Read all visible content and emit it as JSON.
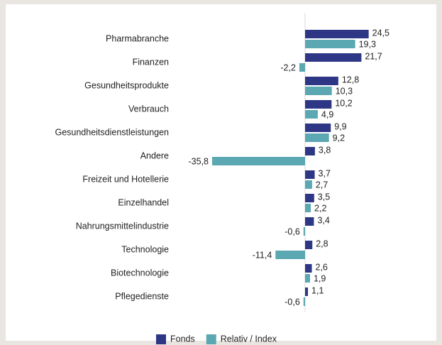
{
  "chart_data": {
    "type": "bar",
    "orientation": "horizontal",
    "categories": [
      "Pharmabranche",
      "Finanzen",
      "Gesundheitsprodukte",
      "Verbrauch",
      "Gesundheitsdienstleistungen",
      "Andere",
      "Freizeit und Hotellerie",
      "Einzelhandel",
      "Nahrungsmittelindustrie",
      "Technologie",
      "Biotechnologie",
      "Pflegedienste"
    ],
    "series": [
      {
        "name": "Fonds",
        "color": "#2d3785",
        "values": [
          24.5,
          21.7,
          12.8,
          10.2,
          9.9,
          3.8,
          3.7,
          3.5,
          3.4,
          2.8,
          2.6,
          1.1
        ],
        "value_labels": [
          "24,5",
          "21,7",
          "12,8",
          "10,2",
          "9,9",
          "3,8",
          "3,7",
          "3,5",
          "3,4",
          "2,8",
          "2,6",
          "1,1"
        ]
      },
      {
        "name": "Relativ / Index",
        "color": "#5ba7b2",
        "values": [
          19.3,
          -2.2,
          10.3,
          4.9,
          9.2,
          -35.8,
          2.7,
          2.2,
          -0.6,
          -11.4,
          1.9,
          -0.6
        ],
        "value_labels": [
          "19,3",
          "-2,2",
          "10,3",
          "4,9",
          "9,2",
          "-35,8",
          "2,7",
          "2,2",
          "-0,6",
          "-11,4",
          "1,9",
          "-0,6"
        ]
      }
    ],
    "legend": "bottom"
  }
}
